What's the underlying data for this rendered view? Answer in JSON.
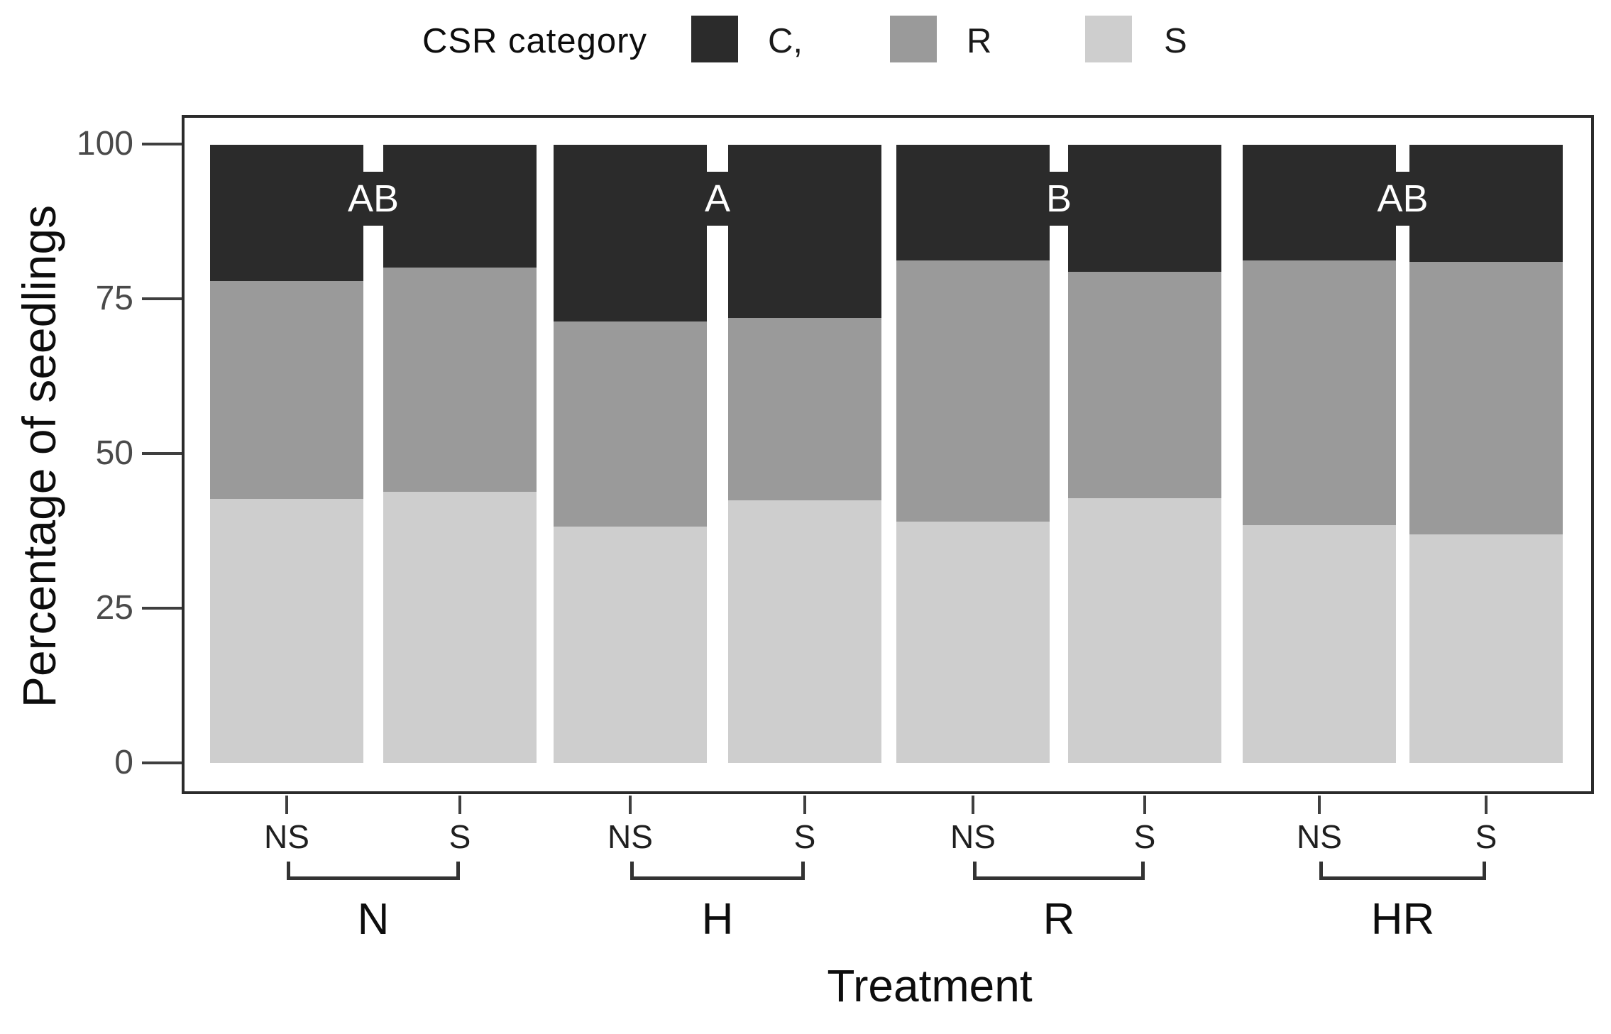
{
  "legend": {
    "title": "CSR category",
    "items": [
      {
        "label": "C,",
        "color": "#2b2b2b"
      },
      {
        "label": "R",
        "color": "#9a9a9a"
      },
      {
        "label": "S",
        "color": "#cecece"
      }
    ]
  },
  "y_axis": {
    "label": "Percentage of seedlings",
    "tick_labels": [
      "100",
      "75",
      "50",
      "25",
      "0"
    ]
  },
  "x_axis": {
    "label": "Treatment"
  },
  "groups": [
    {
      "name": "N",
      "significance": "AB",
      "bars": [
        {
          "label": "NS",
          "S": 42.7,
          "R": 35.3,
          "C": 22.0
        },
        {
          "label": "S",
          "S": 43.9,
          "R": 36.2,
          "C": 19.9
        }
      ]
    },
    {
      "name": "H",
      "significance": "A",
      "bars": [
        {
          "label": "NS",
          "S": 38.2,
          "R": 33.2,
          "C": 28.6
        },
        {
          "label": "S",
          "S": 42.5,
          "R": 29.5,
          "C": 28.0
        }
      ]
    },
    {
      "name": "R",
      "significance": "B",
      "bars": [
        {
          "label": "NS",
          "S": 39.0,
          "R": 42.3,
          "C": 18.7
        },
        {
          "label": "S",
          "S": 42.8,
          "R": 36.6,
          "C": 20.6
        }
      ]
    },
    {
      "name": "HR",
      "significance": "AB",
      "bars": [
        {
          "label": "NS",
          "S": 38.5,
          "R": 42.8,
          "C": 18.7
        },
        {
          "label": "S",
          "S": 37.0,
          "R": 44.0,
          "C": 19.0
        }
      ]
    }
  ],
  "chart_data": {
    "type": "bar",
    "stacked": true,
    "orientation": "vertical",
    "title": "",
    "xlabel": "Treatment",
    "ylabel": "Percentage of seedlings",
    "ylim": [
      0,
      100
    ],
    "yticks": [
      0,
      25,
      50,
      75,
      100
    ],
    "grid": false,
    "legend_title": "CSR category",
    "legend_position": "top",
    "group_labels": [
      "N",
      "H",
      "R",
      "HR"
    ],
    "sub_labels": [
      "NS",
      "S"
    ],
    "categories": [
      "N-NS",
      "N-S",
      "H-NS",
      "H-S",
      "R-NS",
      "R-S",
      "HR-NS",
      "HR-S"
    ],
    "series": [
      {
        "name": "C",
        "color": "#2b2b2b",
        "values": [
          22.0,
          19.9,
          28.6,
          28.0,
          18.7,
          20.6,
          18.7,
          19.0
        ]
      },
      {
        "name": "R",
        "color": "#9a9a9a",
        "values": [
          35.3,
          36.2,
          33.2,
          29.5,
          42.3,
          36.6,
          42.8,
          44.0
        ]
      },
      {
        "name": "S",
        "color": "#cecece",
        "values": [
          42.7,
          43.9,
          38.2,
          42.5,
          39.0,
          42.8,
          38.5,
          37.0
        ]
      }
    ],
    "annotations": [
      {
        "text": "AB",
        "group": "N"
      },
      {
        "text": "A",
        "group": "H"
      },
      {
        "text": "B",
        "group": "R"
      },
      {
        "text": "AB",
        "group": "HR"
      }
    ]
  }
}
